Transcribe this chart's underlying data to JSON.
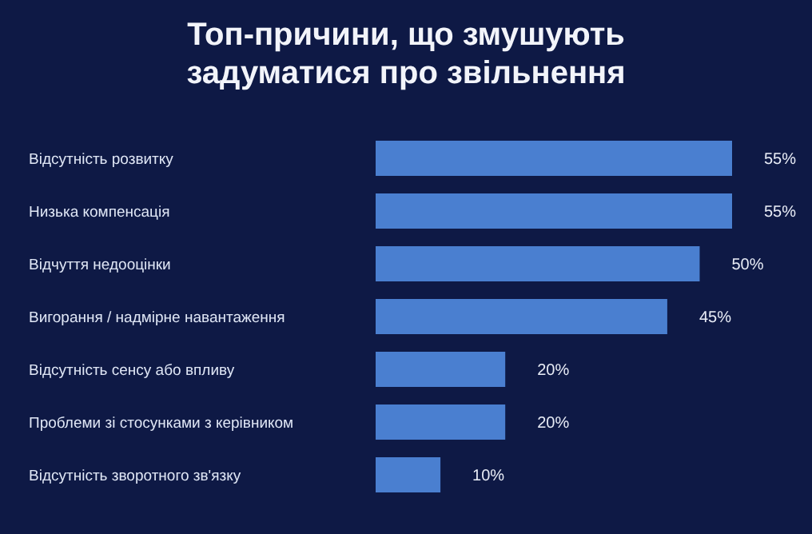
{
  "chart_data": {
    "type": "bar",
    "orientation": "horizontal",
    "title": "Топ-причини, що змушують задуматися про звільнення",
    "categories": [
      "Відсутність розвитку",
      "Низька компенсація",
      "Відчуття недооцінки",
      "Вигорання / надмірне навантаження",
      "Відсутність сенсу або впливу",
      "Проблеми зі стосунками з керівником",
      "Відсутність зворотного зв'язку"
    ],
    "values": [
      55,
      55,
      50,
      45,
      20,
      20,
      10
    ],
    "value_labels": [
      "55%",
      "55%",
      "50%",
      "45%",
      "20%",
      "20%",
      "10%"
    ],
    "color": "#4a7fd0",
    "grid": false,
    "legend": false
  }
}
